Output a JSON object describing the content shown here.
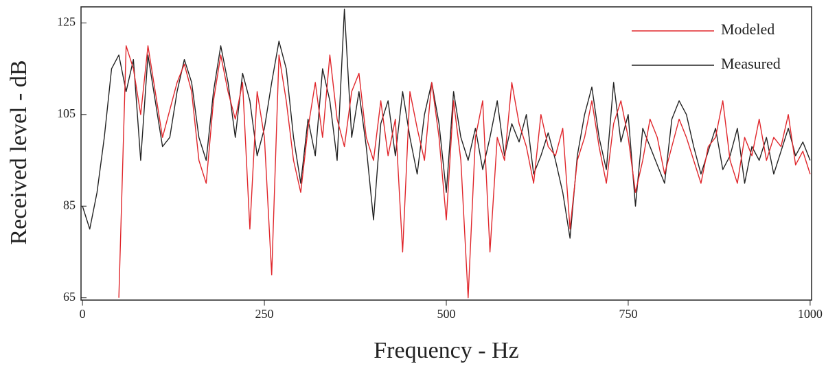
{
  "chart_data": {
    "type": "line",
    "xlabel": "Frequency - Hz",
    "ylabel": "Received level - dB",
    "x": [
      0,
      10,
      20,
      30,
      40,
      50,
      60,
      70,
      80,
      90,
      100,
      110,
      120,
      130,
      140,
      150,
      160,
      170,
      180,
      190,
      200,
      210,
      220,
      230,
      240,
      250,
      260,
      270,
      280,
      290,
      300,
      310,
      320,
      330,
      340,
      350,
      360,
      370,
      380,
      390,
      400,
      410,
      420,
      430,
      440,
      450,
      460,
      470,
      480,
      490,
      500,
      510,
      520,
      530,
      540,
      550,
      560,
      570,
      580,
      590,
      600,
      610,
      620,
      630,
      640,
      650,
      660,
      670,
      680,
      690,
      700,
      710,
      720,
      730,
      740,
      750,
      760,
      770,
      780,
      790,
      800,
      810,
      820,
      830,
      840,
      850,
      860,
      870,
      880,
      890,
      900,
      910,
      920,
      930,
      940,
      950,
      960,
      970,
      980,
      990,
      1000
    ],
    "series": [
      {
        "name": "Measured",
        "color": "#222222",
        "values": [
          85,
          80,
          88,
          100,
          115,
          118,
          110,
          117,
          95,
          118,
          108,
          98,
          100,
          110,
          117,
          112,
          100,
          95,
          110,
          120,
          112,
          100,
          114,
          108,
          96,
          102,
          112,
          121,
          115,
          100,
          90,
          104,
          96,
          115,
          108,
          95,
          128,
          100,
          110,
          98,
          82,
          103,
          108,
          96,
          110,
          100,
          92,
          105,
          112,
          103,
          88,
          110,
          100,
          95,
          102,
          93,
          100,
          108,
          96,
          103,
          99,
          105,
          92,
          96,
          101,
          95,
          88,
          78,
          96,
          105,
          111,
          100,
          93,
          112,
          99,
          105,
          85,
          102,
          98,
          94,
          90,
          104,
          108,
          105,
          98,
          92,
          97,
          102,
          93,
          96,
          102,
          90,
          98,
          95,
          100,
          92,
          97,
          102,
          96,
          99,
          95
        ]
      },
      {
        "name": "Modeled",
        "color": "#e0262b",
        "values": [
          null,
          null,
          null,
          null,
          null,
          65,
          120,
          115,
          105,
          120,
          110,
          100,
          106,
          112,
          116,
          110,
          95,
          90,
          108,
          118,
          110,
          104,
          112,
          80,
          110,
          100,
          70,
          118,
          108,
          95,
          88,
          102,
          112,
          100,
          118,
          104,
          98,
          110,
          114,
          100,
          95,
          108,
          96,
          104,
          75,
          110,
          102,
          95,
          112,
          100,
          82,
          108,
          95,
          65,
          100,
          108,
          75,
          100,
          95,
          112,
          103,
          98,
          90,
          105,
          98,
          96,
          102,
          80,
          95,
          100,
          108,
          98,
          90,
          103,
          108,
          100,
          88,
          95,
          104,
          100,
          92,
          98,
          104,
          100,
          95,
          90,
          98,
          100,
          108,
          95,
          90,
          100,
          96,
          104,
          95,
          100,
          98,
          105,
          94,
          97,
          92
        ]
      }
    ],
    "xlim": [
      -2,
      1002
    ],
    "ylim": [
      64.5,
      128.5
    ],
    "xticks": [
      0,
      250,
      500,
      750,
      1000
    ],
    "yticks": [
      65,
      85,
      105,
      125
    ],
    "legend": "upper right"
  }
}
